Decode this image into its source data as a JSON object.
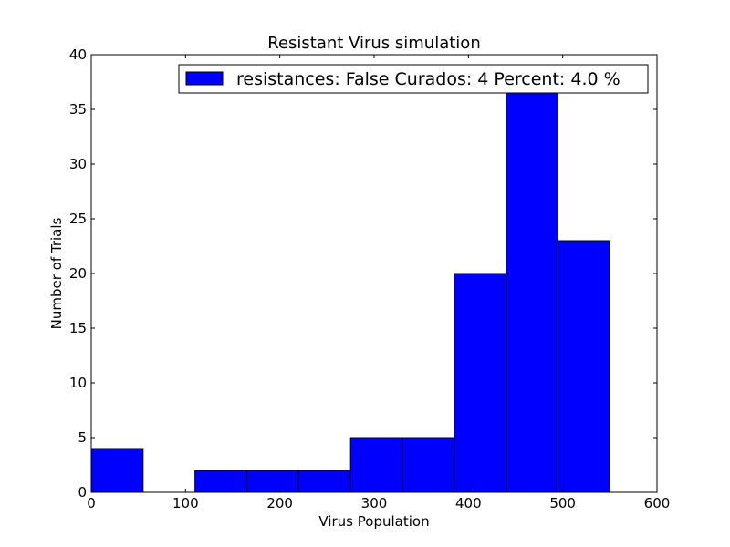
{
  "chart_data": {
    "type": "bar",
    "title": "Resistant Virus simulation",
    "xlabel": "Virus Population",
    "ylabel": "Number of Trials",
    "xlim": [
      0,
      600
    ],
    "ylim": [
      0,
      40
    ],
    "xticks": [
      0,
      100,
      200,
      300,
      400,
      500,
      600
    ],
    "yticks": [
      0,
      5,
      10,
      15,
      20,
      25,
      30,
      35,
      40
    ],
    "bin_width": 55,
    "bins": [
      {
        "start": 0,
        "end": 55,
        "value": 4
      },
      {
        "start": 55,
        "end": 110,
        "value": 0
      },
      {
        "start": 110,
        "end": 165,
        "value": 2
      },
      {
        "start": 165,
        "end": 220,
        "value": 2
      },
      {
        "start": 220,
        "end": 275,
        "value": 2
      },
      {
        "start": 275,
        "end": 330,
        "value": 5
      },
      {
        "start": 330,
        "end": 385,
        "value": 5
      },
      {
        "start": 385,
        "end": 440,
        "value": 20
      },
      {
        "start": 440,
        "end": 495,
        "value": 37
      },
      {
        "start": 495,
        "end": 550,
        "value": 23
      }
    ],
    "series": [
      {
        "name": "resistances: False Curados: 4 Percent: 4.0 %",
        "color": "#0000ff"
      }
    ],
    "legend_position": "top-right",
    "grid": false
  }
}
